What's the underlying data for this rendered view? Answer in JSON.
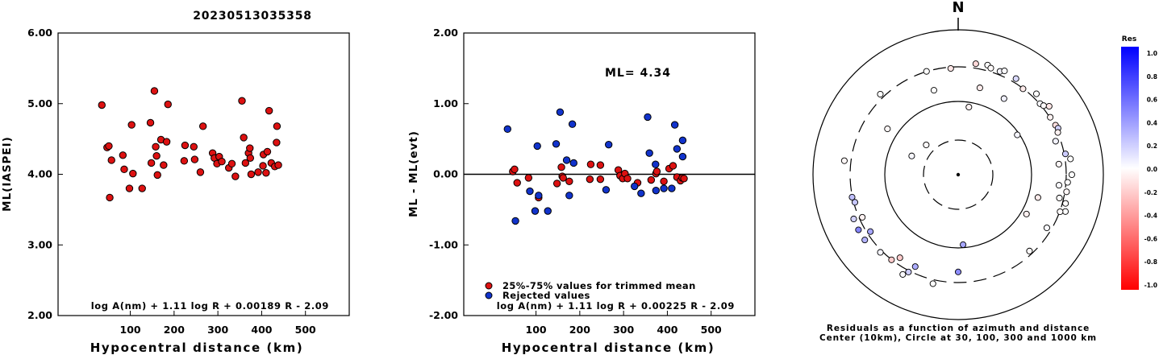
{
  "figure_title": "20230513035358",
  "chart_data": [
    {
      "id": "ml-vs-distance",
      "type": "scatter",
      "xlabel": "Hypocentral distance (km)",
      "ylabel": "ML(IASPEI)",
      "xlim": [
        -65,
        600
      ],
      "ylim": [
        2.0,
        6.0
      ],
      "xticks": [
        100,
        200,
        300,
        400,
        500
      ],
      "yticks": [
        2.0,
        3.0,
        4.0,
        5.0,
        6.0
      ],
      "ytick_labels": [
        "2.00",
        "3.00",
        "4.00",
        "5.00",
        "6.00"
      ],
      "formula": "log A(nm) + 1.11 log R + 0.00189 R - 2.09",
      "marker_color": "#dd1111",
      "points": [
        [
          35,
          4.98
        ],
        [
          47,
          4.38
        ],
        [
          51,
          4.4
        ],
        [
          53,
          3.67
        ],
        [
          57,
          4.2
        ],
        [
          83,
          4.27
        ],
        [
          86,
          4.07
        ],
        [
          98,
          3.8
        ],
        [
          103,
          4.7
        ],
        [
          106,
          4.01
        ],
        [
          127,
          3.8
        ],
        [
          146,
          4.73
        ],
        [
          148,
          4.16
        ],
        [
          155,
          5.18
        ],
        [
          158,
          4.39
        ],
        [
          160,
          4.26
        ],
        [
          162,
          3.99
        ],
        [
          170,
          4.49
        ],
        [
          176,
          4.13
        ],
        [
          183,
          4.46
        ],
        [
          186,
          4.99
        ],
        [
          223,
          4.19
        ],
        [
          225,
          4.41
        ],
        [
          245,
          4.39
        ],
        [
          247,
          4.21
        ],
        [
          260,
          4.03
        ],
        [
          266,
          4.68
        ],
        [
          288,
          4.3
        ],
        [
          292,
          4.23
        ],
        [
          298,
          4.15
        ],
        [
          303,
          4.25
        ],
        [
          309,
          4.18
        ],
        [
          325,
          4.09
        ],
        [
          332,
          4.15
        ],
        [
          340,
          3.97
        ],
        [
          355,
          5.04
        ],
        [
          359,
          4.52
        ],
        [
          363,
          4.16
        ],
        [
          370,
          4.3
        ],
        [
          373,
          4.37
        ],
        [
          374,
          4.23
        ],
        [
          376,
          4.0
        ],
        [
          392,
          4.03
        ],
        [
          403,
          4.12
        ],
        [
          404,
          4.28
        ],
        [
          410,
          4.02
        ],
        [
          413,
          4.32
        ],
        [
          417,
          4.9
        ],
        [
          422,
          4.16
        ],
        [
          430,
          4.11
        ],
        [
          434,
          4.45
        ],
        [
          435,
          4.68
        ],
        [
          438,
          4.13
        ]
      ]
    },
    {
      "id": "ml-residual-vs-distance",
      "type": "scatter",
      "xlabel": "Hypocentral distance (km)",
      "ylabel": "ML - ML(evt)",
      "xlim": [
        -65,
        600
      ],
      "ylim": [
        -2.0,
        2.0
      ],
      "xticks": [
        100,
        200,
        300,
        400,
        500
      ],
      "yticks": [
        -2.0,
        -1.0,
        0.0,
        1.0,
        2.0
      ],
      "ytick_labels": [
        "-2.00",
        "-1.00",
        "0.00",
        "1.00",
        "2.00"
      ],
      "reference_line": 0.0,
      "ml_label": "ML= 4.34",
      "formula": "log A(nm) + 1.11 log R + 0.00225 R - 2.09",
      "legend": [
        {
          "label": "25%-75% values for trimmed mean",
          "color": "#dd1111"
        },
        {
          "label": "Rejected values",
          "color": "#1133cc"
        }
      ],
      "series": [
        {
          "name": "25%-75% values for trimmed mean",
          "color": "#dd1111",
          "points": [
            [
              47,
              0.04
            ],
            [
              51,
              0.07
            ],
            [
              57,
              -0.12
            ],
            [
              83,
              -0.05
            ],
            [
              106,
              -0.33
            ],
            [
              148,
              -0.13
            ],
            [
              158,
              0.1
            ],
            [
              160,
              -0.03
            ],
            [
              162,
              -0.05
            ],
            [
              176,
              -0.1
            ],
            [
              223,
              -0.07
            ],
            [
              225,
              0.14
            ],
            [
              247,
              0.13
            ],
            [
              247,
              -0.07
            ],
            [
              288,
              0.06
            ],
            [
              292,
              -0.02
            ],
            [
              298,
              -0.06
            ],
            [
              303,
              0.01
            ],
            [
              309,
              -0.06
            ],
            [
              332,
              -0.12
            ],
            [
              363,
              -0.08
            ],
            [
              374,
              0.01
            ],
            [
              376,
              0.04
            ],
            [
              392,
              -0.1
            ],
            [
              404,
              0.08
            ],
            [
              413,
              0.12
            ],
            [
              422,
              -0.04
            ],
            [
              430,
              -0.09
            ],
            [
              434,
              -0.05
            ],
            [
              438,
              -0.06
            ]
          ]
        },
        {
          "name": "Rejected values",
          "color": "#1133cc",
          "points": [
            [
              35,
              0.64
            ],
            [
              53,
              -0.66
            ],
            [
              86,
              -0.24
            ],
            [
              98,
              -0.52
            ],
            [
              103,
              0.4
            ],
            [
              106,
              -0.3
            ],
            [
              127,
              -0.52
            ],
            [
              146,
              0.43
            ],
            [
              155,
              0.88
            ],
            [
              170,
              0.2
            ],
            [
              176,
              -0.3
            ],
            [
              183,
              0.71
            ],
            [
              186,
              0.16
            ],
            [
              260,
              -0.22
            ],
            [
              266,
              0.42
            ],
            [
              325,
              -0.17
            ],
            [
              340,
              -0.27
            ],
            [
              355,
              0.81
            ],
            [
              359,
              0.3
            ],
            [
              373,
              0.14
            ],
            [
              374,
              -0.23
            ],
            [
              392,
              -0.2
            ],
            [
              410,
              -0.2
            ],
            [
              417,
              0.7
            ],
            [
              422,
              0.36
            ],
            [
              435,
              0.48
            ],
            [
              435,
              0.25
            ]
          ]
        }
      ]
    },
    {
      "id": "residual-azimuth-map",
      "type": "scatter",
      "north_label": "N",
      "caption_line1": "Residuals as a function of azimuth and distance",
      "caption_line2": "Center (10km), Circle at 30, 100, 300 and 1000 km",
      "circles_km": [
        30,
        100,
        300,
        1000
      ],
      "distance_transform": "log10 of (distance/10 km), 1000 km at outer ring",
      "colorbar": {
        "title": "Res",
        "range": [
          -1.0,
          1.0
        ],
        "tick_labels": [
          "1.0",
          "0.8",
          "0.6",
          "0.4",
          "0.2",
          "0.0",
          "-0.2",
          "-0.4",
          "-0.6",
          "-0.8",
          "-1.0"
        ],
        "negative_color": "#ff0000",
        "positive_color": "#0000ff",
        "zero_color": "#ffffff"
      },
      "stations": [
        {
          "az": 313,
          "dist": 40,
          "res": -0.02
        },
        {
          "az": 292,
          "dist": 49,
          "res": 0.03
        },
        {
          "az": 9,
          "dist": 88,
          "res": -0.05
        },
        {
          "az": 56,
          "dist": 96,
          "res": 0.04
        },
        {
          "az": 120,
          "dist": 122,
          "res": -0.06
        },
        {
          "az": 106,
          "dist": 139,
          "res": -0.08
        },
        {
          "az": 303,
          "dist": 145,
          "res": -0.03
        },
        {
          "az": 344,
          "dist": 163,
          "res": 0.0
        },
        {
          "az": 31,
          "dist": 168,
          "res": 0.06
        },
        {
          "az": 14,
          "dist": 172,
          "res": -0.08
        },
        {
          "az": 176,
          "dist": 93,
          "res": 0.35
        },
        {
          "az": 71,
          "dist": 263,
          "res": 0.05
        },
        {
          "az": 84,
          "dist": 248,
          "res": -0.03
        },
        {
          "az": 96,
          "dist": 249,
          "res": 0.02
        },
        {
          "az": 103,
          "dist": 270,
          "res": -0.01
        },
        {
          "az": 121,
          "dist": 266,
          "res": 0.02
        },
        {
          "az": 137,
          "dist": 276,
          "res": -0.02
        },
        {
          "az": 49,
          "dist": 312,
          "res": 0.02
        },
        {
          "az": 51,
          "dist": 327,
          "res": -0.02
        },
        {
          "az": 58,
          "dist": 313,
          "res": -0.05
        },
        {
          "az": 246,
          "dist": 279,
          "res": -0.05
        },
        {
          "az": 237,
          "dist": 277,
          "res": 0.35
        },
        {
          "az": 255,
          "dist": 297,
          "res": 0.22
        },
        {
          "az": 180,
          "dist": 220,
          "res": 0.45
        },
        {
          "az": 205,
          "dist": 251,
          "res": 0.32
        },
        {
          "az": 215,
          "dist": 251,
          "res": -0.2
        },
        {
          "az": 343,
          "dist": 310,
          "res": 0.0
        },
        {
          "az": 356,
          "dist": 295,
          "res": -0.1
        },
        {
          "az": 9,
          "dist": 355,
          "res": -0.15
        },
        {
          "az": 15,
          "dist": 368,
          "res": 0.0
        },
        {
          "az": 17,
          "dist": 345,
          "res": -0.02
        },
        {
          "az": 22,
          "dist": 345,
          "res": 0.04
        },
        {
          "az": 24,
          "dist": 370,
          "res": 0.02
        },
        {
          "az": 31,
          "dist": 352,
          "res": 0.15
        },
        {
          "az": 37,
          "dist": 305,
          "res": -0.08
        },
        {
          "az": 44,
          "dist": 356,
          "res": 0.0
        },
        {
          "az": 53,
          "dist": 371,
          "res": -0.1
        },
        {
          "az": 63,
          "dist": 320,
          "res": -0.12
        },
        {
          "az": 65,
          "dist": 330,
          "res": 0.18
        },
        {
          "az": 67,
          "dist": 310,
          "res": -0.05
        },
        {
          "az": 79,
          "dist": 320,
          "res": 0.2
        },
        {
          "az": 82,
          "dist": 365,
          "res": 0.0
        },
        {
          "az": 90,
          "dist": 368,
          "res": 0.0
        },
        {
          "az": 94,
          "dist": 325,
          "res": 0.0
        },
        {
          "az": 99,
          "dist": 325,
          "res": -0.03
        },
        {
          "az": 105,
          "dist": 340,
          "res": -0.01
        },
        {
          "az": 109,
          "dist": 365,
          "res": 0.0
        },
        {
          "az": 110,
          "dist": 312,
          "res": -0.02
        },
        {
          "az": 193,
          "dist": 350,
          "res": 0.0
        },
        {
          "az": 207,
          "dist": 322,
          "res": 0.2
        },
        {
          "az": 209,
          "dist": 375,
          "res": 0.02
        },
        {
          "az": 218,
          "dist": 310,
          "res": -0.2
        },
        {
          "az": 225,
          "dist": 328,
          "res": 0.04
        },
        {
          "az": 235,
          "dist": 372,
          "res": 0.3
        },
        {
          "az": 241,
          "dist": 372,
          "res": 0.48
        },
        {
          "az": 247,
          "dist": 366,
          "res": 0.18
        },
        {
          "az": 258,
          "dist": 312,
          "res": 0.25
        },
        {
          "az": 277,
          "dist": 380,
          "res": -0.03
        },
        {
          "az": 316,
          "dist": 350,
          "res": 0.0
        }
      ]
    }
  ]
}
